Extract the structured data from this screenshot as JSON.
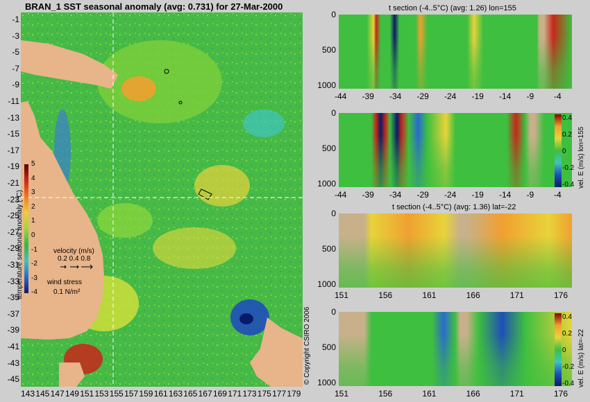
{
  "map": {
    "title": "BRAN_1 SST seasonal anomaly (avg: 0.731) for 27-Mar-2000",
    "y_ticks": [
      "-1",
      "-3",
      "-5",
      "-7",
      "-9",
      "-11",
      "-13",
      "-15",
      "-17",
      "-19",
      "-21",
      "-23",
      "-25",
      "-27",
      "-29",
      "-31",
      "-33",
      "-35",
      "-37",
      "-39",
      "-41",
      "-43",
      "-45"
    ],
    "x_ticks": [
      "143",
      "145",
      "147",
      "149",
      "151",
      "153",
      "155",
      "157",
      "159",
      "161",
      "163",
      "165",
      "167",
      "169",
      "171",
      "173",
      "175",
      "177",
      "179"
    ],
    "colorbar": {
      "ticks": [
        "5",
        "4",
        "3",
        "2",
        "1",
        "0",
        "-1",
        "-2",
        "-3",
        "-4"
      ],
      "label": "temperature seasonal anomaly (°C)"
    },
    "velocity_legend": {
      "title": "velocity (m/s)",
      "values": "0.2 0.4 0.8"
    },
    "wind_legend": {
      "title": "wind stress",
      "value": "0.1 N/m²"
    },
    "colors": {
      "land": "#e8b48a",
      "warm": "#cf3d1f",
      "neutral": "#3fbf3f",
      "cool": "#1f4fb8"
    }
  },
  "copyright": "© Copyright CSIRO 2006",
  "panels": [
    {
      "title": "t section (-4..5°C) (avg: 1.26) lon=155",
      "side_label": "",
      "y_ticks": [
        "0",
        "500",
        "1000"
      ],
      "x_ticks": [
        "-44",
        "-39",
        "-34",
        "-29",
        "-24",
        "-19",
        "-14",
        "-9",
        "-4"
      ]
    },
    {
      "title": "",
      "side_label": "vel. E (m/s) lon=155",
      "y_ticks": [
        "0",
        "500",
        "1000"
      ],
      "x_ticks": [
        "-44",
        "-39",
        "-34",
        "-29",
        "-24",
        "-19",
        "-14",
        "-9",
        "-4"
      ],
      "cbar_ticks": [
        "0.4",
        "0.2",
        "0",
        "-0.2",
        "-0.4"
      ]
    },
    {
      "title": "t section (-4..5°C) (avg: 1.36) lat=-22",
      "side_label": "",
      "y_ticks": [
        "0",
        "500",
        "1000"
      ],
      "x_ticks": [
        "151",
        "156",
        "161",
        "166",
        "171",
        "176"
      ]
    },
    {
      "title": "",
      "side_label": "vel. E (m/s) lat=-22",
      "y_ticks": [
        "0",
        "500",
        "1000"
      ],
      "x_ticks": [
        "151",
        "156",
        "161",
        "166",
        "171",
        "176"
      ],
      "cbar_ticks": [
        "0.4",
        "0.2",
        "0",
        "-0.2",
        "-0.4"
      ]
    }
  ]
}
